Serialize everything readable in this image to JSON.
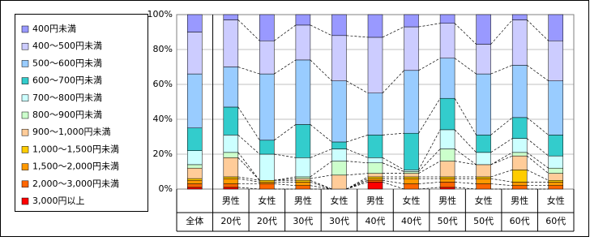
{
  "chart_data": {
    "type": "stacked_bar_100",
    "categories": [
      [
        "全体"
      ],
      [
        "男性",
        "20代"
      ],
      [
        "女性",
        "20代"
      ],
      [
        "男性",
        "30代"
      ],
      [
        "女性",
        "30代"
      ],
      [
        "男性",
        "40代"
      ],
      [
        "女性",
        "40代"
      ],
      [
        "男性",
        "50代"
      ],
      [
        "女性",
        "50代"
      ],
      [
        "男性",
        "60代"
      ],
      [
        "女性",
        "60代"
      ]
    ],
    "series": [
      {
        "name": "400円未満",
        "color": "#9999ff",
        "values": [
          10,
          3,
          15,
          6,
          12,
          13,
          7,
          5,
          17,
          3,
          15
        ]
      },
      {
        "name": "400～500円未満",
        "color": "#ccccff",
        "values": [
          24,
          27,
          19,
          20,
          26,
          32,
          25,
          20,
          17,
          26,
          23
        ]
      },
      {
        "name": "500～600円未満",
        "color": "#99ccff",
        "values": [
          31,
          23,
          38,
          37,
          35,
          24,
          36,
          23,
          35,
          30,
          31
        ]
      },
      {
        "name": "600～700円未満",
        "color": "#33cccc",
        "values": [
          13,
          16,
          8,
          19,
          4,
          13,
          21,
          18,
          10,
          12,
          12
        ]
      },
      {
        "name": "700～800円未満",
        "color": "#ccffff",
        "values": [
          8,
          10,
          15,
          11,
          7,
          3,
          1,
          11,
          7,
          8,
          7
        ]
      },
      {
        "name": "800～900円未満",
        "color": "#ccffcc",
        "values": [
          2,
          3,
          0,
          1,
          8,
          6,
          1,
          7,
          0,
          2,
          3
        ]
      },
      {
        "name": "900～1,000円未満",
        "color": "#ffcc99",
        "values": [
          6,
          11,
          0,
          1,
          8,
          2,
          2,
          9,
          7,
          8,
          4
        ]
      },
      {
        "name": "1,000～1,500円未満",
        "color": "#ffcc00",
        "values": [
          1,
          1,
          1,
          1,
          0,
          1,
          1,
          1,
          1,
          7,
          1
        ]
      },
      {
        "name": "1,500～2,000円未満",
        "color": "#ff9900",
        "values": [
          2,
          3,
          1,
          2,
          0,
          1,
          3,
          2,
          3,
          2,
          2
        ]
      },
      {
        "name": "2,000～3,000円未満",
        "color": "#ff6600",
        "values": [
          2,
          2,
          3,
          2,
          0,
          1,
          3,
          3,
          3,
          2,
          2
        ]
      },
      {
        "name": "3,000円以上",
        "color": "#ff0000",
        "values": [
          1,
          1,
          0,
          0,
          0,
          4,
          0,
          1,
          0,
          0,
          0
        ]
      }
    ],
    "ylim": [
      0,
      100
    ],
    "yticks": [
      {
        "value": 0,
        "label": "0%"
      },
      {
        "value": 20,
        "label": "20%"
      },
      {
        "value": 40,
        "label": "40%"
      },
      {
        "value": 60,
        "label": "60%"
      },
      {
        "value": 80,
        "label": "80%"
      },
      {
        "value": 100,
        "label": "100%"
      }
    ],
    "grid": true
  }
}
